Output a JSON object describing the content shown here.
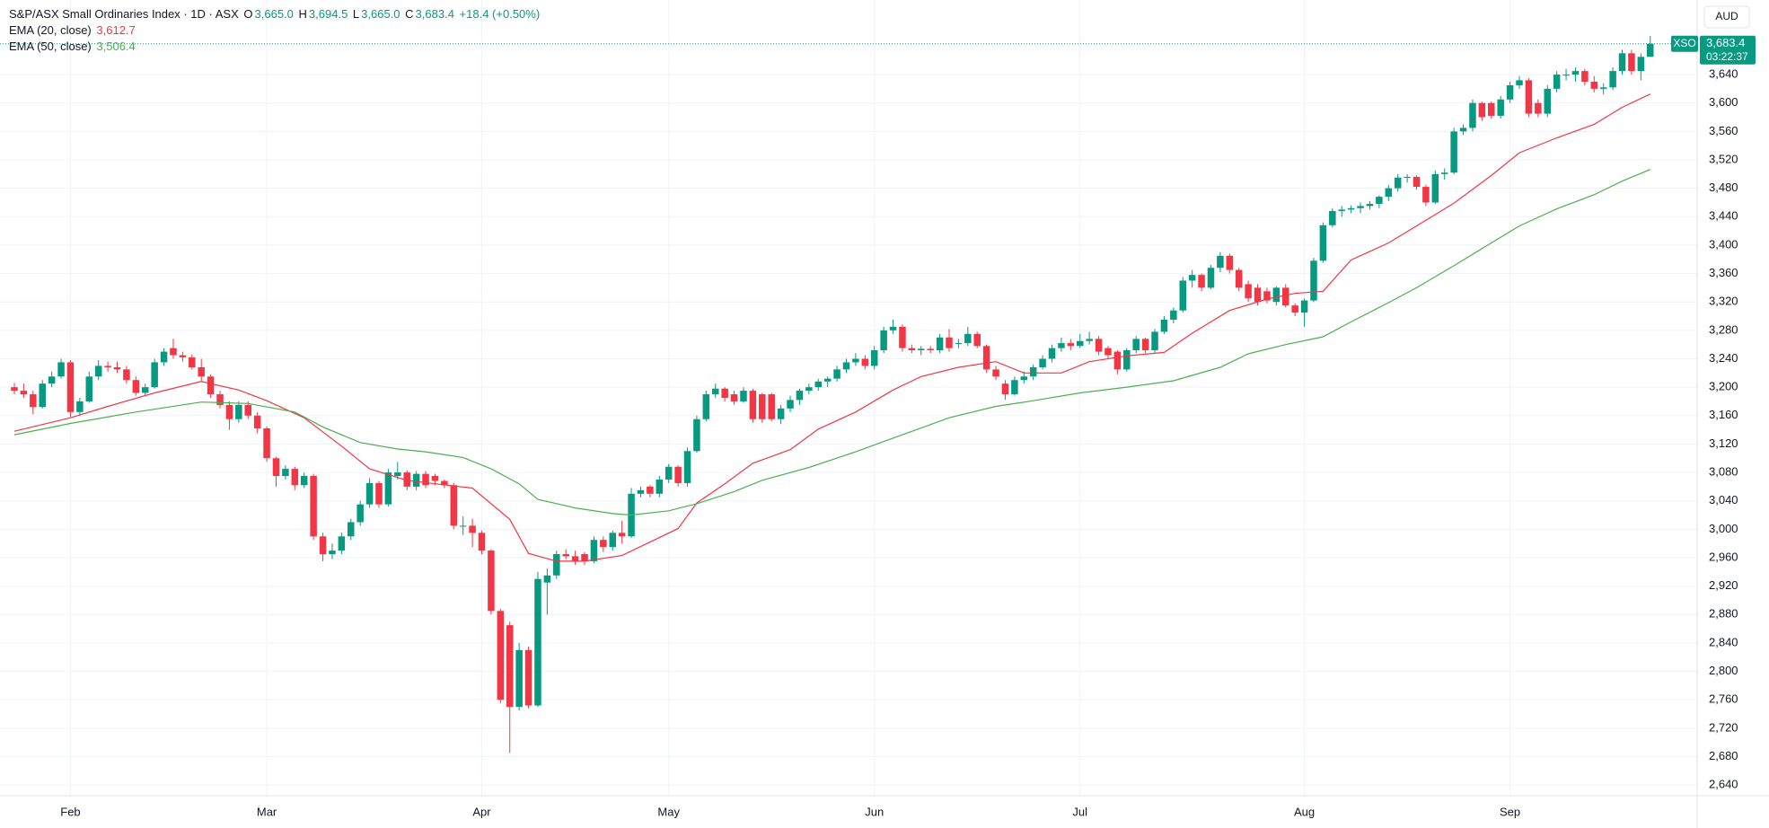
{
  "header": {
    "title": "S&P/ASX Small Ordinaries Index · 1D · ASX",
    "o": "O",
    "open": "3,665.0",
    "h": "H",
    "high": "3,694.5",
    "l": "L",
    "low": "3,665.0",
    "c": "C",
    "close": "3,683.4",
    "change": "+18.4 (+0.50%)",
    "symbol": "XSO",
    "countdown": "03:22:37",
    "currency": "AUD"
  },
  "chart_data": {
    "type": "candlestick",
    "up_color": "#089981",
    "down_color": "#f23645",
    "grid": true,
    "categories": [
      null,
      null,
      null,
      null,
      null,
      null,
      "Feb",
      null,
      null,
      null,
      null,
      null,
      null,
      null,
      null,
      null,
      null,
      null,
      null,
      null,
      null,
      null,
      null,
      null,
      null,
      null,
      null,
      "Mar",
      null,
      null,
      null,
      null,
      null,
      null,
      null,
      null,
      null,
      null,
      null,
      null,
      null,
      null,
      null,
      null,
      null,
      null,
      null,
      null,
      null,
      null,
      "Apr",
      null,
      null,
      null,
      null,
      null,
      null,
      null,
      null,
      null,
      null,
      null,
      null,
      null,
      null,
      null,
      null,
      null,
      null,
      null,
      "May",
      null,
      null,
      null,
      null,
      null,
      null,
      null,
      null,
      null,
      null,
      null,
      null,
      null,
      null,
      null,
      null,
      null,
      null,
      null,
      null,
      null,
      "Jun",
      null,
      null,
      null,
      null,
      null,
      null,
      null,
      null,
      null,
      null,
      null,
      null,
      null,
      null,
      null,
      null,
      null,
      null,
      null,
      null,
      null,
      "Jul",
      null,
      null,
      null,
      null,
      null,
      null,
      null,
      null,
      null,
      null,
      null,
      null,
      null,
      null,
      null,
      null,
      null,
      null,
      null,
      null,
      null,
      null,
      null,
      "Aug",
      null,
      null,
      null,
      null,
      null,
      null,
      null,
      null,
      null,
      null,
      null,
      null,
      null,
      null,
      null,
      null,
      null,
      null,
      null,
      null,
      null,
      "Sep",
      null,
      null,
      null,
      null,
      null,
      null,
      null,
      null,
      null,
      null,
      null,
      null,
      null,
      null,
      null
    ],
    "open": [
      3200,
      3195,
      3190,
      3172,
      3205,
      3215,
      3235,
      3165,
      3180,
      3215,
      3230,
      3228,
      3225,
      3210,
      3192,
      3200,
      3235,
      3255,
      3245,
      3242,
      3228,
      3215,
      3190,
      3175,
      3155,
      3175,
      3160,
      3142,
      3100,
      3075,
      3085,
      3062,
      3075,
      2990,
      2965,
      2970,
      2990,
      3010,
      3035,
      3065,
      3035,
      3075,
      3080,
      3060,
      3078,
      3075,
      3068,
      3062,
      3005,
      3005,
      2995,
      2970,
      2885,
      2865,
      2750,
      2830,
      2752,
      2925,
      2935,
      2965,
      2962,
      2965,
      2955,
      2985,
      2975,
      2995,
      2990,
      3050,
      3060,
      3050,
      3070,
      3088,
      3065,
      3110,
      3155,
      3190,
      3198,
      3190,
      3180,
      3195,
      3190,
      3190,
      3155,
      3170,
      3182,
      3195,
      3200,
      3208,
      3212,
      3225,
      3235,
      3240,
      3230,
      3252,
      3280,
      3285,
      3255,
      3252,
      3254,
      3252,
      3270,
      3262,
      3262,
      3275,
      3258,
      3225,
      3205,
      3190,
      3210,
      3215,
      3228,
      3240,
      3255,
      3262,
      3258,
      3265,
      3268,
      3255,
      3250,
      3225,
      3252,
      3268,
      3252,
      3278,
      3295,
      3308,
      3350,
      3358,
      3340,
      3368,
      3385,
      3365,
      3345,
      3340,
      3335,
      3320,
      3340,
      3315,
      3305,
      3322,
      3378,
      3428,
      3448,
      3450,
      3452,
      3455,
      3458,
      3468,
      3480,
      3495,
      3496,
      3482,
      3460,
      3500,
      3502,
      3560,
      3565,
      3600,
      3600,
      3582,
      3605,
      3625,
      3632,
      3600,
      3585,
      3620,
      3640,
      3640,
      3645,
      3630,
      3620,
      3622,
      3645,
      3670,
      3645,
      3665
    ],
    "high": [
      3206,
      3205,
      3195,
      3210,
      3222,
      3240,
      3238,
      3185,
      3222,
      3238,
      3236,
      3236,
      3230,
      3215,
      3205,
      3240,
      3255,
      3268,
      3250,
      3246,
      3240,
      3218,
      3195,
      3180,
      3180,
      3180,
      3165,
      3145,
      3102,
      3090,
      3088,
      3080,
      3078,
      2995,
      2980,
      2995,
      3015,
      3040,
      3072,
      3068,
      3085,
      3095,
      3083,
      3082,
      3082,
      3078,
      3070,
      3065,
      3018,
      3015,
      2998,
      2972,
      2888,
      2870,
      2840,
      2835,
      2940,
      2945,
      2970,
      2972,
      2970,
      2968,
      2990,
      2990,
      2998,
      3012,
      3058,
      3060,
      3062,
      3075,
      3092,
      3090,
      3115,
      3160,
      3195,
      3205,
      3200,
      3195,
      3200,
      3198,
      3192,
      3192,
      3175,
      3188,
      3198,
      3205,
      3212,
      3215,
      3230,
      3240,
      3248,
      3245,
      3258,
      3285,
      3295,
      3288,
      3260,
      3258,
      3258,
      3275,
      3282,
      3268,
      3285,
      3278,
      3260,
      3230,
      3210,
      3215,
      3222,
      3232,
      3245,
      3260,
      3270,
      3268,
      3275,
      3278,
      3272,
      3258,
      3252,
      3255,
      3272,
      3270,
      3282,
      3300,
      3312,
      3355,
      3365,
      3360,
      3372,
      3390,
      3388,
      3368,
      3350,
      3345,
      3340,
      3342,
      3345,
      3318,
      3325,
      3382,
      3432,
      3452,
      3455,
      3456,
      3460,
      3462,
      3470,
      3485,
      3500,
      3500,
      3498,
      3485,
      3505,
      3508,
      3565,
      3570,
      3605,
      3602,
      3602,
      3610,
      3630,
      3638,
      3635,
      3605,
      3625,
      3645,
      3648,
      3650,
      3648,
      3638,
      3628,
      3650,
      3675,
      3675,
      3670,
      3694.5
    ],
    "low": [
      3190,
      3185,
      3162,
      3170,
      3200,
      3212,
      3158,
      3160,
      3178,
      3210,
      3222,
      3220,
      3205,
      3188,
      3188,
      3198,
      3230,
      3240,
      3236,
      3225,
      3208,
      3185,
      3170,
      3140,
      3150,
      3155,
      3135,
      3095,
      3060,
      3070,
      3055,
      3058,
      2985,
      2955,
      2958,
      2965,
      2985,
      3005,
      3030,
      3030,
      3032,
      3070,
      3055,
      3055,
      3058,
      3062,
      3058,
      3000,
      2992,
      2975,
      2965,
      2880,
      2755,
      2685,
      2745,
      2748,
      2750,
      2880,
      2930,
      2958,
      2950,
      2950,
      2952,
      2968,
      2970,
      2980,
      2988,
      3045,
      3045,
      3045,
      3065,
      3060,
      3060,
      3108,
      3152,
      3185,
      3180,
      3175,
      3178,
      3150,
      3150,
      3152,
      3148,
      3165,
      3175,
      3190,
      3195,
      3200,
      3208,
      3220,
      3230,
      3225,
      3225,
      3248,
      3275,
      3250,
      3248,
      3245,
      3248,
      3248,
      3250,
      3255,
      3258,
      3255,
      3220,
      3210,
      3182,
      3188,
      3205,
      3210,
      3225,
      3235,
      3250,
      3252,
      3255,
      3260,
      3245,
      3240,
      3218,
      3222,
      3248,
      3248,
      3248,
      3275,
      3290,
      3305,
      3340,
      3335,
      3338,
      3362,
      3360,
      3335,
      3320,
      3315,
      3318,
      3315,
      3312,
      3300,
      3285,
      3320,
      3375,
      3425,
      3440,
      3445,
      3445,
      3450,
      3452,
      3462,
      3475,
      3488,
      3478,
      3455,
      3458,
      3492,
      3500,
      3555,
      3560,
      3575,
      3578,
      3578,
      3600,
      3620,
      3580,
      3580,
      3580,
      3615,
      3632,
      3630,
      3625,
      3615,
      3612,
      3618,
      3640,
      3640,
      3632,
      3665
    ],
    "close": [
      3195,
      3190,
      3172,
      3205,
      3215,
      3235,
      3165,
      3180,
      3215,
      3230,
      3228,
      3225,
      3210,
      3192,
      3200,
      3235,
      3250,
      3245,
      3242,
      3228,
      3215,
      3190,
      3175,
      3155,
      3175,
      3160,
      3142,
      3100,
      3075,
      3085,
      3062,
      3075,
      2990,
      2965,
      2970,
      2990,
      3010,
      3035,
      3065,
      3035,
      3080,
      3080,
      3060,
      3078,
      3062,
      3068,
      3062,
      3005,
      3005,
      2995,
      2970,
      2885,
      2760,
      2750,
      2830,
      2752,
      2930,
      2935,
      2965,
      2962,
      2955,
      2955,
      2985,
      2975,
      2995,
      2990,
      3050,
      3055,
      3050,
      3070,
      3088,
      3065,
      3110,
      3155,
      3190,
      3198,
      3185,
      3180,
      3195,
      3155,
      3155,
      3155,
      3170,
      3182,
      3195,
      3200,
      3208,
      3212,
      3225,
      3235,
      3240,
      3230,
      3252,
      3280,
      3285,
      3255,
      3252,
      3254,
      3252,
      3270,
      3255,
      3262,
      3275,
      3258,
      3225,
      3215,
      3190,
      3210,
      3215,
      3228,
      3240,
      3255,
      3262,
      3258,
      3265,
      3268,
      3250,
      3245,
      3225,
      3252,
      3268,
      3252,
      3278,
      3295,
      3308,
      3350,
      3358,
      3340,
      3368,
      3385,
      3365,
      3340,
      3325,
      3320,
      3322,
      3340,
      3315,
      3305,
      3322,
      3378,
      3428,
      3448,
      3450,
      3452,
      3455,
      3458,
      3468,
      3480,
      3495,
      3496,
      3482,
      3460,
      3500,
      3502,
      3560,
      3565,
      3600,
      3580,
      3582,
      3605,
      3625,
      3632,
      3585,
      3585,
      3620,
      3640,
      3640,
      3645,
      3630,
      3620,
      3622,
      3645,
      3670,
      3645,
      3665,
      3683.4
    ],
    "series": [
      {
        "name": "EMA (20, close)",
        "color": "#f23645",
        "value_label": "3,612.7",
        "x": [
          0,
          6,
          10,
          15,
          20,
          24,
          27,
          31,
          35,
          38,
          42,
          45,
          49,
          53,
          55,
          58,
          61,
          65,
          68,
          71,
          73,
          76,
          79,
          83,
          86,
          90,
          94,
          97,
          101,
          105,
          108,
          112,
          115,
          119,
          123,
          126,
          130,
          134,
          137,
          140,
          143,
          147,
          150,
          154,
          158,
          161,
          165,
          169,
          172,
          175
        ],
        "values": [
          3138,
          3157,
          3173,
          3192,
          3208,
          3196,
          3181,
          3157,
          3117,
          3085,
          3069,
          3064,
          3058,
          3014,
          2966,
          2955,
          2955,
          2963,
          2982,
          3001,
          3037,
          3064,
          3093,
          3112,
          3141,
          3165,
          3196,
          3215,
          3228,
          3236,
          3220,
          3220,
          3236,
          3244,
          3249,
          3276,
          3308,
          3324,
          3332,
          3335,
          3379,
          3403,
          3427,
          3459,
          3498,
          3530,
          3551,
          3570,
          3594,
          3612.7
        ]
      },
      {
        "name": "EMA (50, close)",
        "color": "#4caf50",
        "value_label": "3,506.4",
        "x": [
          0,
          6,
          13,
          20,
          25,
          30,
          33,
          37,
          41,
          44,
          48,
          51,
          54,
          56,
          60,
          64,
          66,
          70,
          73,
          77,
          80,
          85,
          90,
          95,
          100,
          105,
          109,
          114,
          119,
          124,
          129,
          132,
          136,
          140,
          143,
          147,
          150,
          154,
          158,
          161,
          165,
          169,
          172,
          175
        ],
        "values": [
          3133,
          3149,
          3165,
          3179,
          3177,
          3165,
          3144,
          3122,
          3113,
          3109,
          3101,
          3085,
          3064,
          3042,
          3030,
          3022,
          3020,
          3026,
          3036,
          3053,
          3069,
          3087,
          3109,
          3133,
          3157,
          3173,
          3181,
          3192,
          3200,
          3209,
          3228,
          3247,
          3260,
          3271,
          3292,
          3319,
          3340,
          3371,
          3403,
          3427,
          3451,
          3471,
          3490,
          3506.4
        ]
      }
    ],
    "ylim": [
      2625,
      3745
    ],
    "yticks": [
      {
        "value": 2640,
        "label": "2,640"
      },
      {
        "value": 2680,
        "label": "2,680"
      },
      {
        "value": 2720,
        "label": "2,720"
      },
      {
        "value": 2760,
        "label": "2,760"
      },
      {
        "value": 2800,
        "label": "2,800"
      },
      {
        "value": 2840,
        "label": "2,840"
      },
      {
        "value": 2880,
        "label": "2,880"
      },
      {
        "value": 2920,
        "label": "2,920"
      },
      {
        "value": 2960,
        "label": "2,960"
      },
      {
        "value": 3000,
        "label": "3,000"
      },
      {
        "value": 3040,
        "label": "3,040"
      },
      {
        "value": 3080,
        "label": "3,080"
      },
      {
        "value": 3120,
        "label": "3,120"
      },
      {
        "value": 3160,
        "label": "3,160"
      },
      {
        "value": 3200,
        "label": "3,200"
      },
      {
        "value": 3240,
        "label": "3,240"
      },
      {
        "value": 3280,
        "label": "3,280"
      },
      {
        "value": 3320,
        "label": "3,320"
      },
      {
        "value": 3360,
        "label": "3,360"
      },
      {
        "value": 3400,
        "label": "3,400"
      },
      {
        "value": 3440,
        "label": "3,440"
      },
      {
        "value": 3480,
        "label": "3,480"
      },
      {
        "value": 3520,
        "label": "3,520"
      },
      {
        "value": 3560,
        "label": "3,560"
      },
      {
        "value": 3600,
        "label": "3,600"
      },
      {
        "value": 3640,
        "label": "3,640"
      }
    ]
  }
}
